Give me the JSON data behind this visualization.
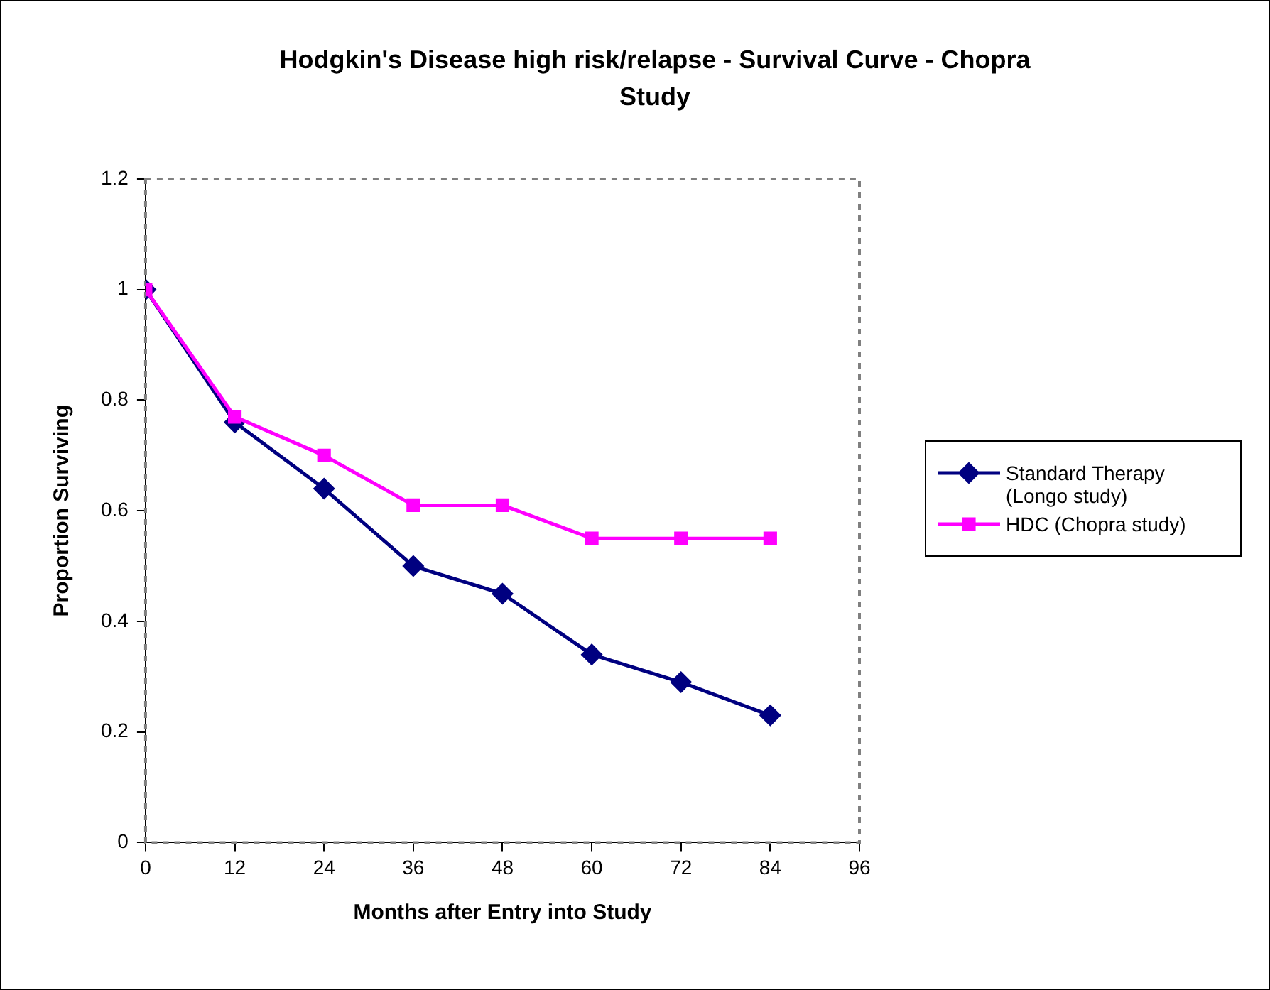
{
  "chart_data": {
    "type": "line",
    "title": "Hodgkin's Disease high risk/relapse - Survival Curve - Chopra Study",
    "xlabel": "Months after Entry into Study",
    "ylabel": "Proportion Surviving",
    "x": [
      0,
      12,
      24,
      36,
      48,
      60,
      72,
      84
    ],
    "series": [
      {
        "name": "Standard Therapy (Longo study)",
        "color": "#000080",
        "marker": "diamond",
        "values": [
          1.0,
          0.76,
          0.64,
          0.5,
          0.45,
          0.34,
          0.29,
          0.23
        ]
      },
      {
        "name": "HDC (Chopra study)",
        "color": "#ff00ff",
        "marker": "square",
        "values": [
          1.0,
          0.77,
          0.7,
          0.61,
          0.61,
          0.55,
          0.55,
          0.55
        ]
      }
    ],
    "xlim": [
      0,
      96
    ],
    "xticks": [
      0,
      12,
      24,
      36,
      48,
      60,
      72,
      84,
      96
    ],
    "ylim": [
      0,
      1.2
    ],
    "yticks": [
      0,
      0.2,
      0.4,
      0.6,
      0.8,
      1,
      1.2
    ],
    "grid": false,
    "legend": "right",
    "line_style": "solid"
  }
}
